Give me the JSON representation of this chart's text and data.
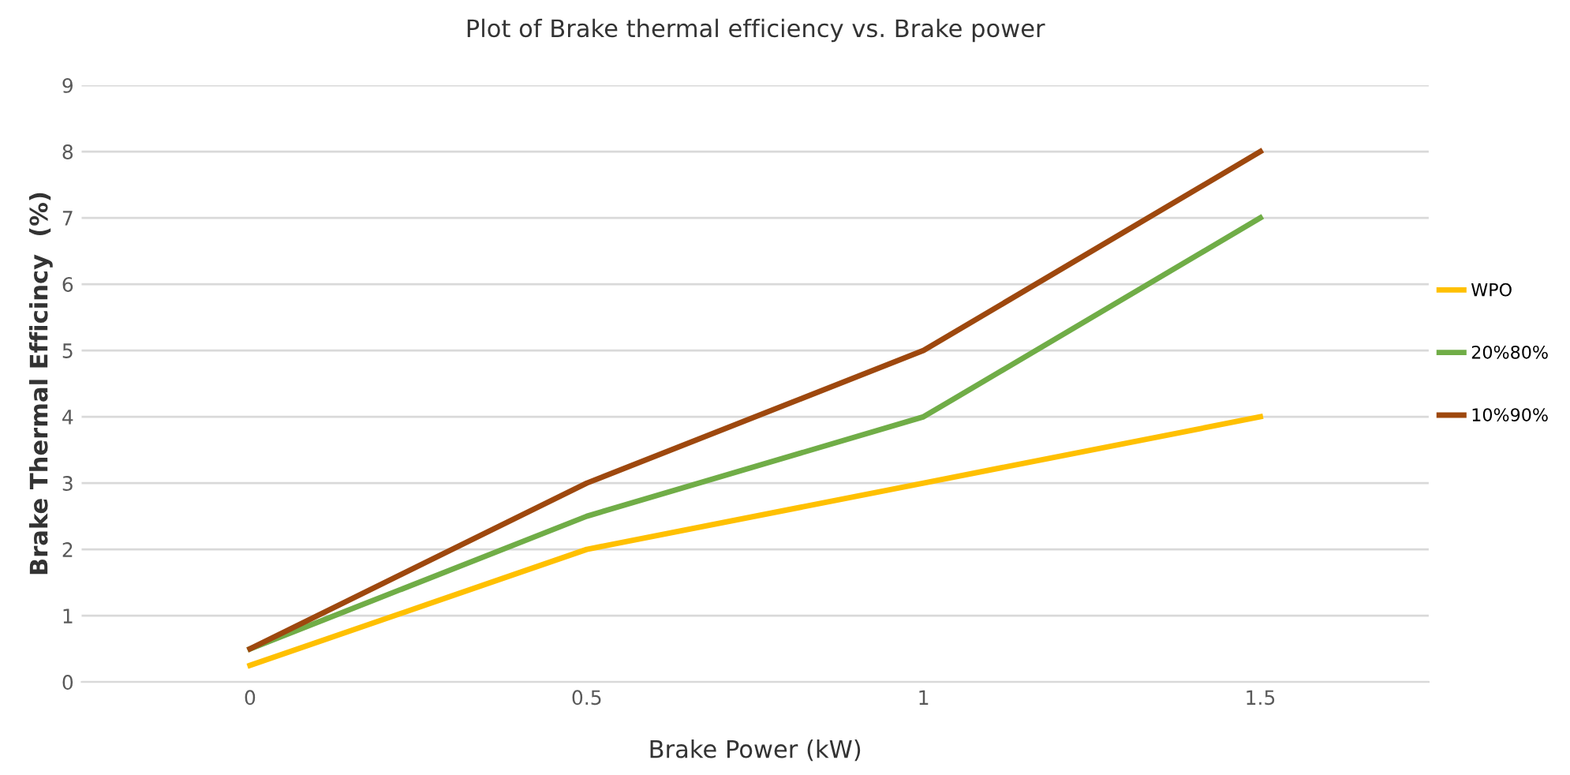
{
  "chart_data": {
    "type": "line",
    "title": "Plot of Brake thermal efficiency vs. Brake power",
    "xlabel": "Brake Power (kW)",
    "ylabel": "Brake Thermal Efficincy  (%)",
    "categories": [
      "0",
      "0.5",
      "1",
      "1.5"
    ],
    "series": [
      {
        "name": "WPO",
        "color": "#ffc000",
        "values": [
          0.25,
          2,
          3,
          4
        ]
      },
      {
        "name": "20%80%",
        "color": "#70ad47",
        "values": [
          0.5,
          2.5,
          4,
          7
        ]
      },
      {
        "name": "10%90%",
        "color": "#9e480e",
        "values": [
          0.5,
          3,
          5,
          8
        ]
      }
    ],
    "ylim": [
      0,
      9
    ],
    "yticks": [
      0,
      1,
      2,
      3,
      4,
      5,
      6,
      7,
      8,
      9
    ],
    "grid": "y",
    "legend": "right",
    "marker": "none",
    "line_style": "solid"
  }
}
